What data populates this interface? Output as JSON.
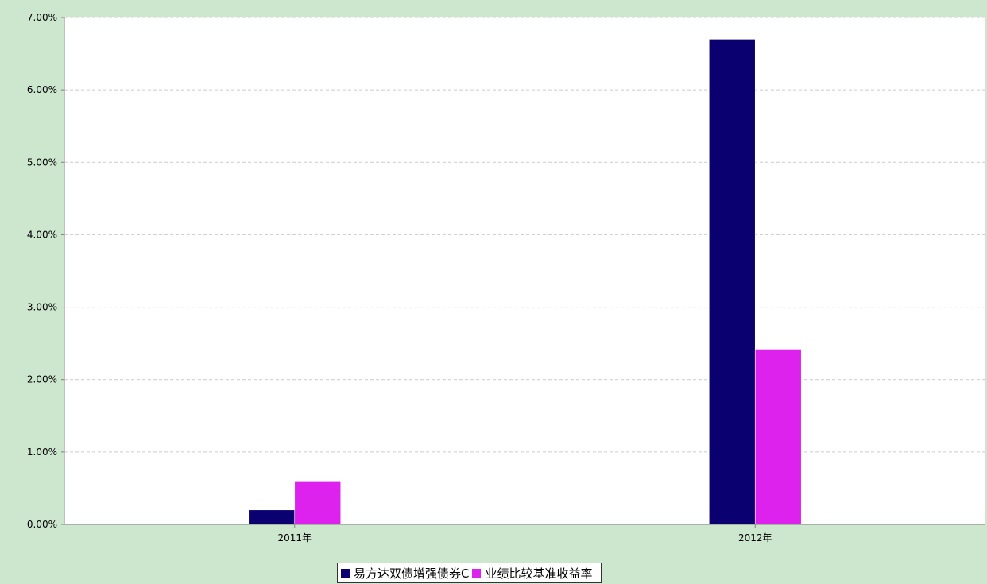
{
  "colors": {
    "background": "#cde7cf",
    "plot_background": "#ffffff",
    "gridline": "#cccccc",
    "axis": "#808080"
  },
  "chart_data": {
    "type": "bar",
    "categories": [
      "2011年",
      "2012年"
    ],
    "series": [
      {
        "name": "易方达双债增强债券C",
        "values": [
          0.2,
          6.7
        ],
        "color": "#0a0070"
      },
      {
        "name": "业绩比较基准收益率",
        "values": [
          0.6,
          2.42
        ],
        "color": "#dd22ee"
      }
    ],
    "yticks": [
      "0.00%",
      "1.00%",
      "2.00%",
      "3.00%",
      "4.00%",
      "5.00%",
      "6.00%",
      "7.00%"
    ],
    "ylim": [
      0,
      7
    ],
    "title": "",
    "xlabel": "",
    "ylabel": "",
    "grid": true,
    "legend_position": "bottom"
  }
}
